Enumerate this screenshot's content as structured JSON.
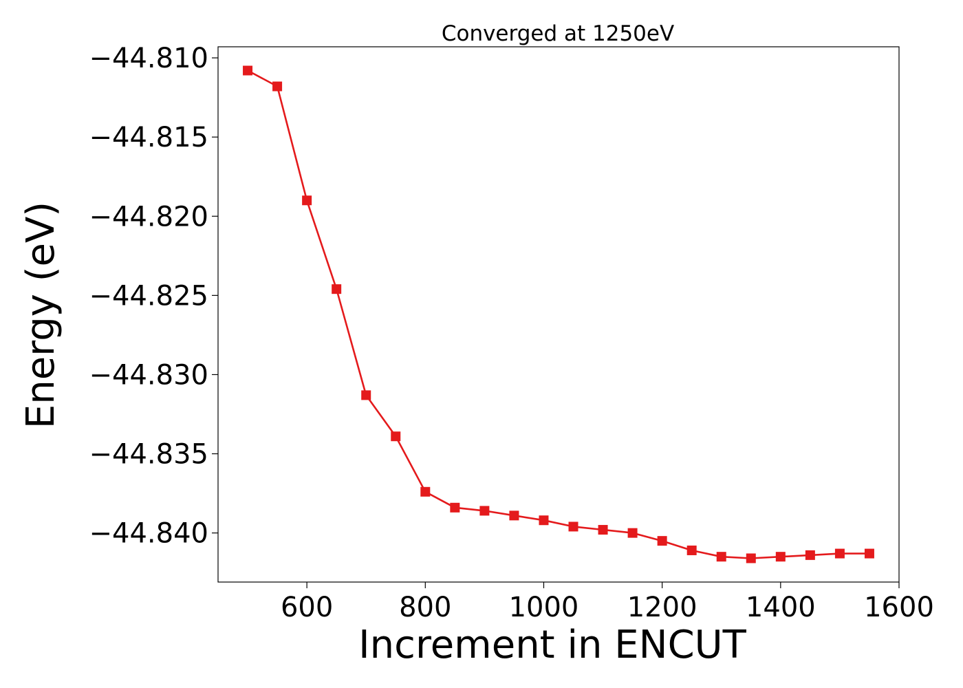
{
  "chart_data": {
    "type": "line",
    "title": "Converged at 1250eV",
    "xlabel": "Increment in ENCUT",
    "ylabel": "Energy (eV)",
    "xlim": [
      450,
      1600
    ],
    "ylim": [
      -44.8431,
      -44.8093
    ],
    "x_ticks": [
      600,
      800,
      1000,
      1200,
      1400,
      1600
    ],
    "x_tick_labels": [
      "600",
      "800",
      "1000",
      "1200",
      "1400",
      "1600"
    ],
    "y_ticks": [
      -44.81,
      -44.815,
      -44.82,
      -44.825,
      -44.83,
      -44.835,
      -44.84
    ],
    "y_tick_labels": [
      "−44.810",
      "−44.815",
      "−44.820",
      "−44.825",
      "−44.830",
      "−44.835",
      "−44.840"
    ],
    "grid": false,
    "legend": "none",
    "series": [
      {
        "color": "#e41a1c",
        "marker": "square",
        "x": [
          500,
          550,
          600,
          650,
          700,
          750,
          800,
          850,
          900,
          950,
          1000,
          1050,
          1100,
          1150,
          1200,
          1250,
          1300,
          1350,
          1400,
          1450,
          1500,
          1550
        ],
        "y": [
          -44.8108,
          -44.8118,
          -44.819,
          -44.8246,
          -44.8313,
          -44.8339,
          -44.8374,
          -44.8384,
          -44.8386,
          -44.8389,
          -44.8392,
          -44.8396,
          -44.8398,
          -44.84,
          -44.8405,
          -44.8411,
          -44.8415,
          -44.8416,
          -44.8415,
          -44.8414,
          -44.8413,
          -44.8413
        ]
      }
    ]
  }
}
